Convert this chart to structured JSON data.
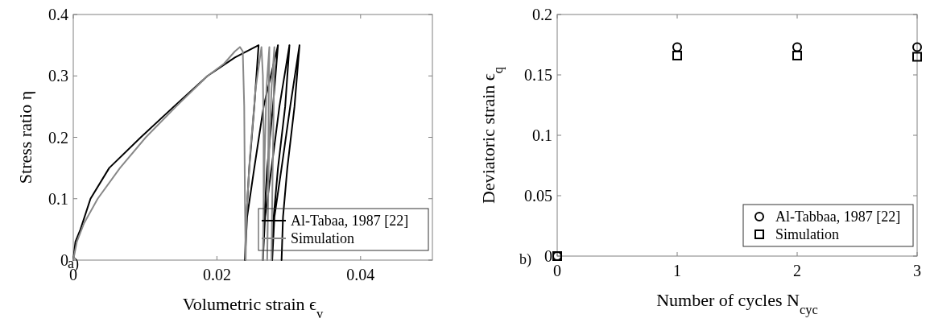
{
  "chart_data": [
    {
      "type": "line",
      "xlabel": "Volumetric strain ϵ$_{v}$",
      "ylabel": "Stress ratio η",
      "xlim": [
        0,
        0.05
      ],
      "xticks": [
        0,
        0.02,
        0.04
      ],
      "ylim": [
        0,
        0.4
      ],
      "yticks": [
        0,
        0.1,
        0.2,
        0.3,
        0.4
      ],
      "grid": false,
      "legend": "bottom right",
      "annotations": [
        "a)"
      ],
      "series": [
        {
          "name": "Al-Tabaa, 1987 [22]",
          "color": "#000000",
          "x": [
            0,
            0.0003,
            0.001,
            0.0024,
            0.005,
            0.0094,
            0.014,
            0.0187,
            0.0225,
            0.0258,
            0.0252,
            0.0245,
            0.0241,
            0.0239,
            0.0242,
            0.0252,
            0.0265,
            0.0285,
            0.0278,
            0.027,
            0.0266,
            0.0264,
            0.0267,
            0.0276,
            0.0287,
            0.0301,
            0.0295,
            0.0285,
            0.0279,
            0.0277,
            0.028,
            0.029,
            0.0302,
            0.0315,
            0.0308,
            0.0298,
            0.0292,
            0.029
          ],
          "values": [
            0,
            0.03,
            0.05,
            0.1,
            0.15,
            0.2,
            0.25,
            0.3,
            0.33,
            0.35,
            0.25,
            0.15,
            0.07,
            0,
            0.07,
            0.15,
            0.25,
            0.35,
            0.25,
            0.15,
            0.07,
            0,
            0.07,
            0.15,
            0.25,
            0.35,
            0.25,
            0.15,
            0.07,
            0,
            0.07,
            0.15,
            0.25,
            0.35,
            0.25,
            0.15,
            0.07,
            0
          ]
        },
        {
          "name": "Simulation",
          "color": "#888888",
          "x": [
            0,
            0.0005,
            0.0015,
            0.0034,
            0.0065,
            0.0101,
            0.0143,
            0.0187,
            0.021,
            0.0225,
            0.0232,
            0.0236,
            0.0238,
            0.0239,
            0.024,
            0.0241,
            0.0246,
            0.0254,
            0.0262,
            0.0264,
            0.0265,
            0.0265,
            0.0264,
            0.0266,
            0.0269,
            0.0273,
            0.0272,
            0.0271,
            0.027,
            0.0272,
            0.0276,
            0.028,
            0.0279,
            0.0277,
            0.0276
          ],
          "values": [
            0,
            0.03,
            0.06,
            0.1,
            0.15,
            0.2,
            0.25,
            0.3,
            0.32,
            0.34,
            0.347,
            0.34,
            0.25,
            0.1,
            0,
            0.07,
            0.17,
            0.28,
            0.347,
            0.3,
            0.2,
            0.1,
            0,
            0.15,
            0.28,
            0.347,
            0.25,
            0.1,
            0,
            0.15,
            0.28,
            0.347,
            0.25,
            0.1,
            0
          ]
        }
      ]
    },
    {
      "type": "scatter",
      "xlabel": "Number of cycles N$_{cyc}$",
      "ylabel": "Deviatoric strain  ϵ$_{q}$",
      "xlim": [
        0,
        3
      ],
      "xticks": [
        0,
        1,
        2,
        3
      ],
      "ylim": [
        0,
        0.2
      ],
      "yticks": [
        0,
        0.05,
        0.1,
        0.15,
        0.2
      ],
      "grid": false,
      "legend": "bottom right",
      "annotations": [
        "b)"
      ],
      "series": [
        {
          "name": "Al-Tabbaa, 1987 [22]",
          "color": "#000000",
          "marker": "circle",
          "x": [
            0,
            1,
            2,
            3
          ],
          "values": [
            0,
            0.173,
            0.173,
            0.173
          ]
        },
        {
          "name": "Simulation",
          "color": "#000000",
          "marker": "square",
          "x": [
            0,
            1,
            2,
            3
          ],
          "values": [
            0,
            0.166,
            0.166,
            0.165
          ]
        }
      ]
    }
  ]
}
